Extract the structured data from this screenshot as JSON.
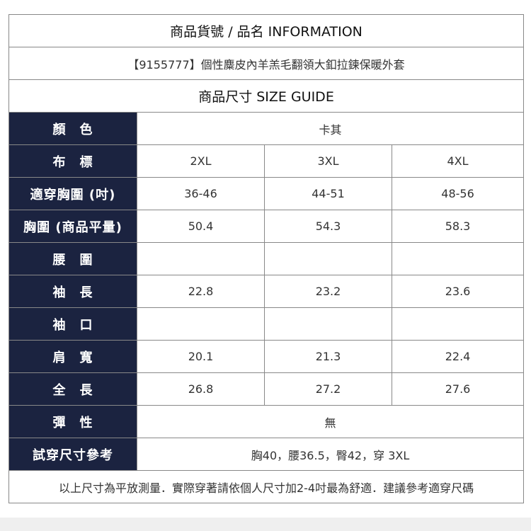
{
  "info_header": "商品貨號 / 品名 INFORMATION",
  "product_name": "【9155777】個性麋皮內羊羔毛翻領大釦拉鍊保暖外套",
  "size_header": "商品尺寸 SIZE GUIDE",
  "colors": {
    "label_bg": "#1b2340",
    "label_text": "#ffffff",
    "border": "#888888"
  },
  "rows": {
    "color": {
      "label": "顏　色",
      "value": "卡其"
    },
    "size": {
      "label": "布　標",
      "values": [
        "2XL",
        "3XL",
        "4XL"
      ]
    },
    "fit_chest": {
      "label": "適穿胸圍 (吋)",
      "values": [
        "36-46",
        "44-51",
        "48-56"
      ]
    },
    "chest": {
      "label": "胸圍 (商品平量)",
      "values": [
        "50.4",
        "54.3",
        "58.3"
      ]
    },
    "waist": {
      "label": "腰　圍",
      "values": [
        "",
        "",
        ""
      ]
    },
    "sleeve": {
      "label": "袖　長",
      "values": [
        "22.8",
        "23.2",
        "23.6"
      ]
    },
    "cuff": {
      "label": "袖　口",
      "values": [
        "",
        "",
        ""
      ]
    },
    "shoulder": {
      "label": "肩　寬",
      "values": [
        "20.1",
        "21.3",
        "22.4"
      ]
    },
    "length": {
      "label": "全　長",
      "values": [
        "26.8",
        "27.2",
        "27.6"
      ]
    },
    "stretch": {
      "label": "彈　性",
      "value": "無"
    },
    "trial": {
      "label": "試穿尺寸參考",
      "value": "胸40，腰36.5，臀42，穿 3XL"
    }
  },
  "note": "以上尺寸為平放測量．實際穿著請依個人尺寸加2-4吋最為舒適．建議參考適穿尺碼"
}
